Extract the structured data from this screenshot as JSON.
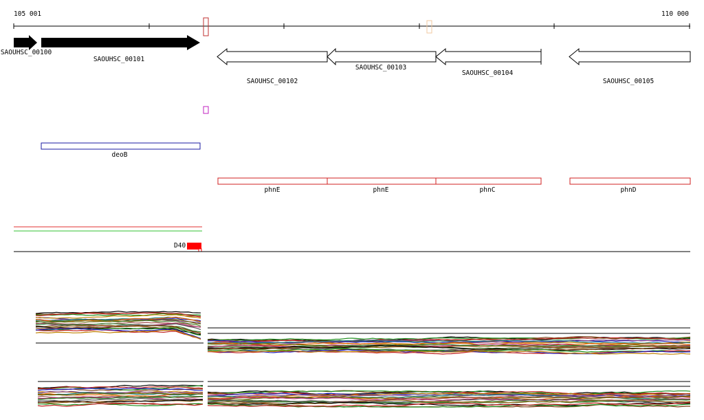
{
  "ruler": {
    "start_label": "105 001",
    "end_label": "110 000",
    "start": 105001,
    "end": 110000
  },
  "genes": [
    {
      "label": "SAOUHSC_00100",
      "strand": "+",
      "filled": true
    },
    {
      "label": "SAOUHSC_00101",
      "strand": "+",
      "filled": true
    },
    {
      "label": "SAOUHSC_00102",
      "strand": "-",
      "filled": false
    },
    {
      "label": "SAOUHSC_00103",
      "strand": "-",
      "filled": false
    },
    {
      "label": "SAOUHSC_00104",
      "strand": "-",
      "filled": false
    },
    {
      "label": "SAOUHSC_00105",
      "strand": "-",
      "filled": false
    }
  ],
  "features": [
    {
      "label": "deoB",
      "color": "#1a1aa0"
    },
    {
      "label": "phnE",
      "color": "#d02020"
    },
    {
      "label": "phnE",
      "color": "#d02020"
    },
    {
      "label": "phnC",
      "color": "#d02020"
    },
    {
      "label": "phnD",
      "color": "#d02020"
    }
  ],
  "annotation_marker": {
    "label": "D40",
    "color": "#ff0000"
  },
  "colors": {
    "track_red": "#e03030",
    "track_green": "#30c030",
    "marker_red": "#c03030",
    "marker_magenta": "#c020c0",
    "marker_faint": "#f0c8a0"
  },
  "expression_palette": [
    "#000000",
    "#7a3b10",
    "#1f8f1f",
    "#c02020",
    "#2020c0",
    "#c08000",
    "#804080",
    "#208080",
    "#e06000",
    "#606000",
    "#a05050",
    "#4a7a2a",
    "#b03070",
    "#308030",
    "#555555",
    "#9a6a20"
  ]
}
